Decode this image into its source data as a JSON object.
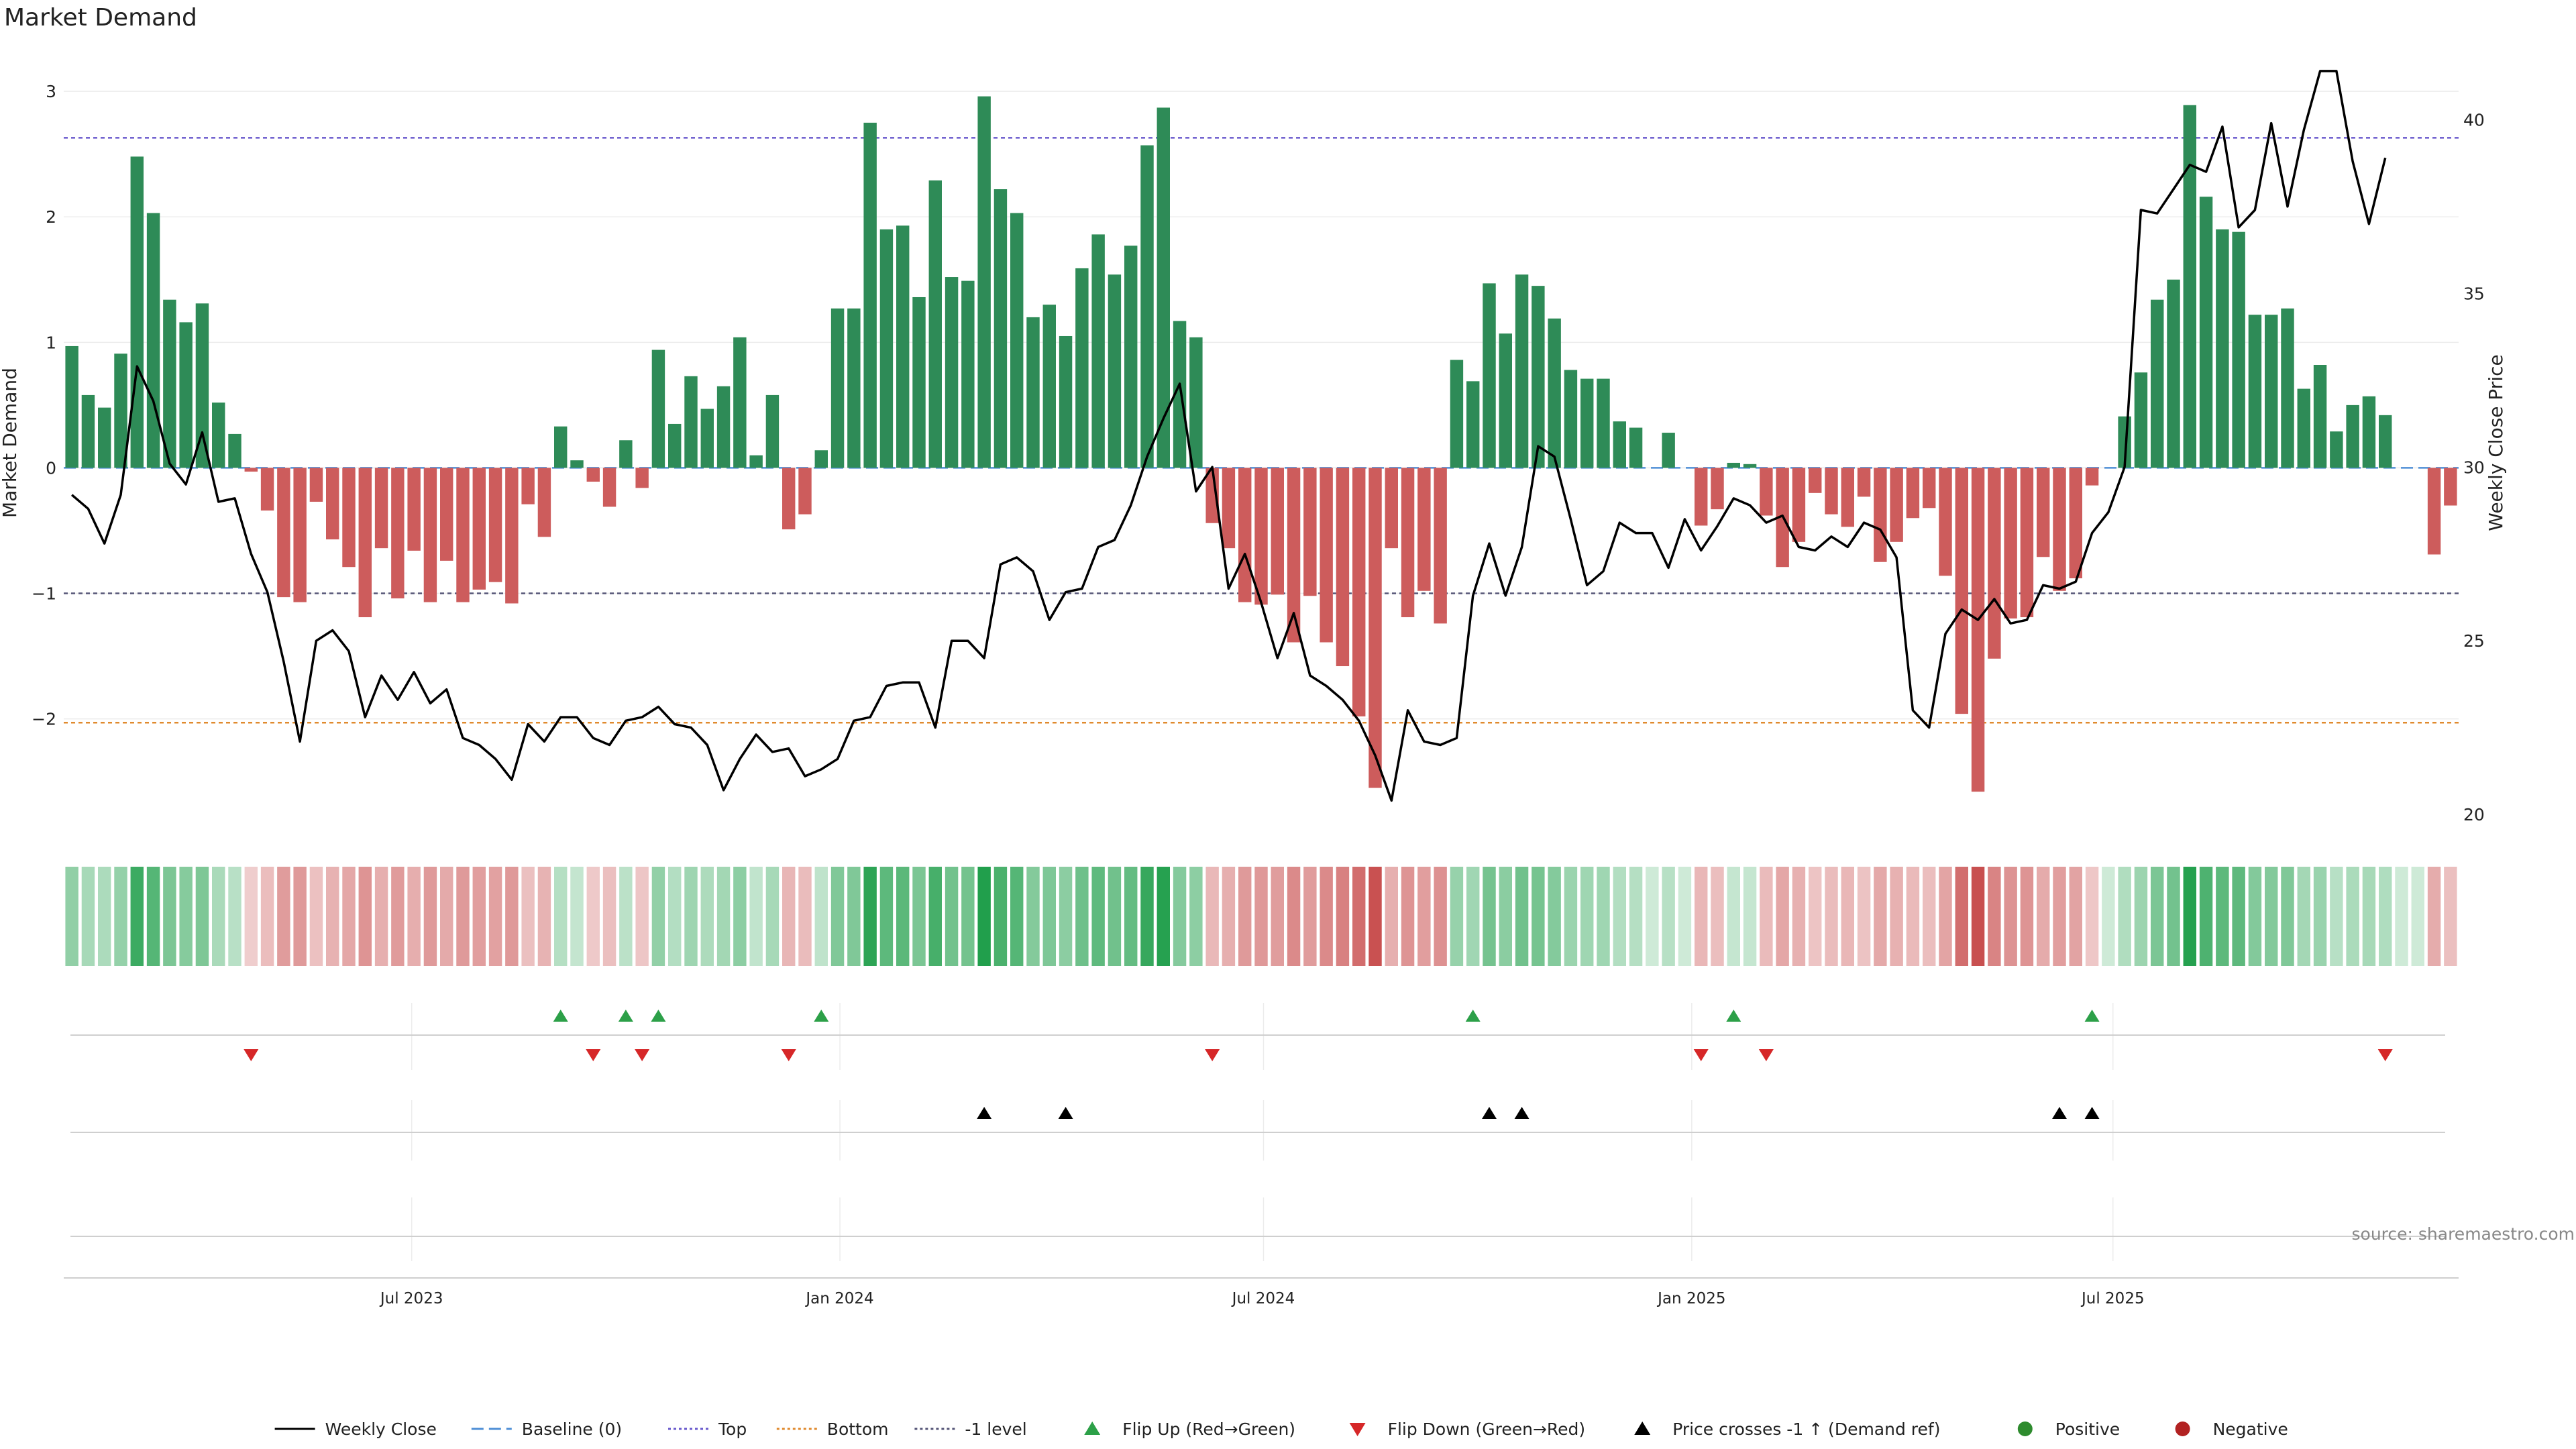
{
  "title": "Market Demand",
  "source": "source: sharemaestro.com",
  "colors": {
    "positive": "#2e8b57",
    "negative": "#cd5c5c",
    "price": "#000000",
    "baseline": "#4f8fd6",
    "top": "#6a5acd",
    "bottom": "#e08a2e",
    "minus_one": "#555577",
    "flip_up": "#2ca048",
    "flip_down": "#d62728",
    "cross": "#000000",
    "dot_positive": "#2e8b2e",
    "dot_negative": "#b22222"
  },
  "legend": [
    {
      "label": "Weekly Close",
      "kind": "line",
      "color": "price",
      "dash": ""
    },
    {
      "label": "Baseline (0)",
      "kind": "line",
      "color": "baseline",
      "dash": "18,8"
    },
    {
      "label": "Top",
      "kind": "line",
      "color": "top",
      "dash": "4,4"
    },
    {
      "label": "Bottom",
      "kind": "line",
      "color": "bottom",
      "dash": "4,4"
    },
    {
      "label": "-1 level",
      "kind": "line",
      "color": "minus_one",
      "dash": "4,4"
    },
    {
      "label": "Flip Up (Red→Green)",
      "kind": "tri-up",
      "color": "flip_up"
    },
    {
      "label": "Flip Down (Green→Red)",
      "kind": "tri-down",
      "color": "flip_down"
    },
    {
      "label": "Price crosses -1 ↑ (Demand ref)",
      "kind": "tri-up",
      "color": "cross"
    },
    {
      "label": "Positive",
      "kind": "dot",
      "color": "dot_positive"
    },
    {
      "label": "Negative",
      "kind": "dot",
      "color": "dot_negative"
    }
  ],
  "chart_data": {
    "type": "bar",
    "ylabel": "Market Demand",
    "y2label": "Weekly Close Price",
    "ylim": [
      -2.9,
      3.3
    ],
    "y2lim": [
      19.5,
      41.9
    ],
    "yticks": [
      3,
      2,
      1,
      0,
      -1,
      -2
    ],
    "y2ticks": [
      40,
      35,
      30,
      25,
      20
    ],
    "levels": {
      "top": 2.63,
      "bottom": -2.03,
      "minus_one": -1,
      "baseline": 0
    },
    "x_start": "2023-02-05",
    "x_step_days": 7,
    "x_ticks": [
      {
        "label": "Jul 2023",
        "date": "2023-07-01"
      },
      {
        "label": "Jan 2024",
        "date": "2024-01-01"
      },
      {
        "label": "Jul 2024",
        "date": "2024-07-01"
      },
      {
        "label": "Jan 2025",
        "date": "2025-01-01"
      },
      {
        "label": "Jul 2025",
        "date": "2025-07-01"
      }
    ],
    "series": [
      {
        "name": "Market Demand",
        "values": [
          0.97,
          0.58,
          0.48,
          0.91,
          2.48,
          2.03,
          1.34,
          1.16,
          1.31,
          0.52,
          0.27,
          -0.03,
          -0.34,
          -1.03,
          -1.07,
          -0.27,
          -0.57,
          -0.79,
          -1.19,
          -0.64,
          -1.04,
          -0.66,
          -1.07,
          -0.74,
          -1.07,
          -0.97,
          -0.91,
          -1.08,
          -0.29,
          -0.55,
          0.33,
          0.06,
          -0.11,
          -0.31,
          0.22,
          -0.16,
          0.94,
          0.35,
          0.73,
          0.47,
          0.65,
          1.04,
          0.1,
          0.58,
          -0.49,
          -0.37,
          0.14,
          1.27,
          1.27,
          2.75,
          1.9,
          1.93,
          1.36,
          2.29,
          1.52,
          1.49,
          2.96,
          2.22,
          2.03,
          1.2,
          1.3,
          1.05,
          1.59,
          1.86,
          1.54,
          1.77,
          2.57,
          2.87,
          1.17,
          1.04,
          -0.44,
          -0.64,
          -1.07,
          -1.09,
          -1.01,
          -1.39,
          -1.02,
          -1.39,
          -1.58,
          -1.98,
          -2.55,
          -0.64,
          -1.19,
          -0.98,
          -1.24,
          0.86,
          0.69,
          1.47,
          1.07,
          1.54,
          1.45,
          1.19,
          0.78,
          0.71,
          0.71,
          0.37,
          0.32,
          0.0,
          0.28,
          0.0,
          -0.46,
          -0.33,
          0.04,
          0.03,
          -0.38,
          -0.79,
          -0.59,
          -0.2,
          -0.37,
          -0.47,
          -0.23,
          -0.75,
          -0.59,
          -0.4,
          -0.32,
          -0.86,
          -1.96,
          -2.58,
          -1.52,
          -1.2,
          -1.19,
          -0.71,
          -0.98,
          -0.88,
          -0.14,
          0.0,
          0.41,
          0.76,
          1.34,
          1.5,
          2.89,
          2.16,
          1.9,
          1.88,
          1.22,
          1.22,
          1.27,
          0.63,
          0.82,
          0.29,
          0.5,
          0.57,
          0.42,
          0.0,
          0.0,
          -0.69,
          -0.3
        ]
      },
      {
        "name": "Weekly Close",
        "values": [
          29.2,
          28.8,
          27.8,
          29.2,
          32.9,
          31.9,
          30.1,
          29.5,
          31.0,
          29.0,
          29.1,
          27.5,
          26.4,
          24.4,
          22.1,
          25.0,
          25.3,
          24.7,
          22.8,
          24.0,
          23.3,
          24.1,
          23.2,
          23.6,
          22.2,
          22.0,
          21.6,
          21.0,
          22.6,
          22.1,
          22.8,
          22.8,
          22.2,
          22.0,
          22.7,
          22.8,
          23.1,
          22.6,
          22.5,
          22.0,
          20.7,
          21.6,
          22.3,
          21.8,
          21.9,
          21.1,
          21.3,
          21.6,
          22.7,
          22.8,
          23.7,
          23.8,
          23.8,
          22.5,
          25.0,
          25.0,
          24.5,
          27.2,
          27.4,
          27.0,
          25.6,
          26.4,
          26.5,
          27.7,
          27.9,
          28.9,
          30.3,
          31.4,
          32.4,
          29.3,
          30.0,
          26.5,
          27.5,
          26.1,
          24.5,
          25.8,
          24.0,
          23.7,
          23.3,
          22.7,
          21.7,
          20.4,
          23.0,
          22.1,
          22.0,
          22.2,
          26.3,
          27.8,
          26.3,
          27.7,
          30.6,
          30.3,
          28.5,
          26.6,
          27.0,
          28.4,
          28.1,
          28.1,
          27.1,
          28.5,
          27.6,
          28.3,
          29.1,
          28.9,
          28.4,
          28.6,
          27.7,
          27.6,
          28.0,
          27.7,
          28.4,
          28.2,
          27.4,
          23.0,
          22.5,
          25.2,
          25.9,
          25.6,
          26.2,
          25.5,
          25.6,
          26.6,
          26.5,
          26.7,
          28.1,
          28.7,
          30.0,
          37.4,
          37.3,
          38.0,
          38.7,
          38.5,
          39.8,
          36.9,
          37.4,
          39.9,
          37.5,
          39.7,
          41.4,
          41.4,
          38.8,
          37.0,
          38.9
        ]
      }
    ],
    "flip_up_indices": [
      30,
      34,
      36,
      46,
      86,
      102,
      124
    ],
    "flip_down_indices": [
      11,
      32,
      35,
      44,
      70,
      100,
      104,
      142
    ],
    "price_cross_indices": [
      56,
      61,
      87,
      89,
      122,
      124
    ]
  }
}
